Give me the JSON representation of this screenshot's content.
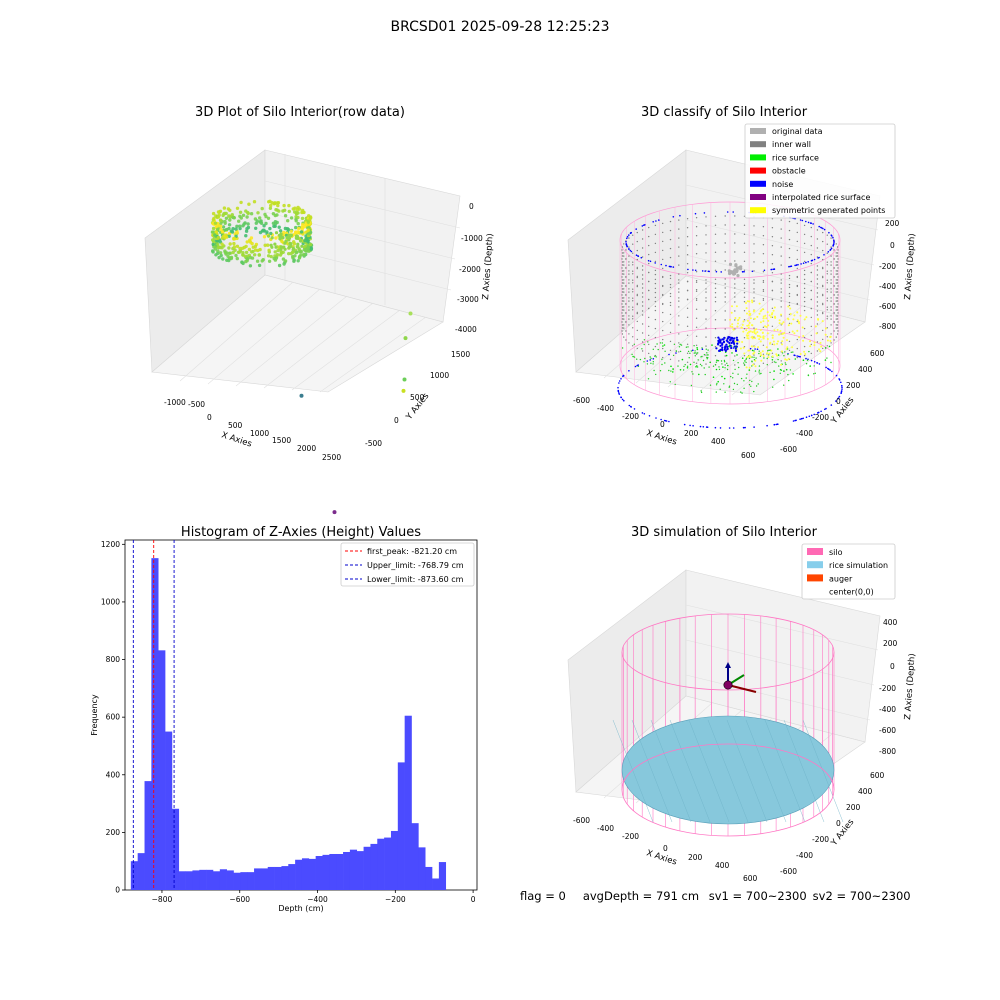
{
  "suptitle": "BRCSD01 2025-09-28 12:25:23",
  "chart_data": [
    {
      "type": "scatter",
      "title": "3D Plot of Silo Interior(row data)",
      "xlabel": "X Axies",
      "ylabel": "Y Axies",
      "zlabel": "Z Axies (Depth)",
      "x_ticks": [
        "-1000",
        "-500",
        "0",
        "500",
        "1000",
        "1500",
        "2000",
        "2500"
      ],
      "y_ticks": [
        "-500",
        "0",
        "500",
        "1000",
        "1500"
      ],
      "z_ticks": [
        "0",
        "-1000",
        "-2000",
        "-3000",
        "-4000"
      ],
      "colormap": "viridis",
      "outliers": [
        {
          "x": 1500,
          "y": 1200,
          "z": -300,
          "color": "#a8e05a"
        },
        {
          "x": 1700,
          "y": 1000,
          "z": -700,
          "color": "#8fd64b"
        },
        {
          "x": 2300,
          "y": 600,
          "z": -1500,
          "color": "#c9e020"
        },
        {
          "x": 2000,
          "y": 800,
          "z": -1600,
          "color": "#6cce59"
        },
        {
          "x": 400,
          "y": 200,
          "z": -2200,
          "color": "#3b7d8f"
        },
        {
          "x": 2200,
          "y": -400,
          "z": -4100,
          "color": "#7b2b8c"
        }
      ]
    },
    {
      "type": "scatter",
      "title": "3D classify of Silo Interior",
      "xlabel": "X Axies",
      "ylabel": "Y Axies",
      "zlabel": "Z Axies (Depth)",
      "x_ticks": [
        "-600",
        "-400",
        "-200",
        "0",
        "200",
        "400",
        "600"
      ],
      "y_ticks": [
        "-600",
        "-400",
        "-200",
        "0",
        "200",
        "400",
        "600"
      ],
      "z_ticks": [
        "200",
        "0",
        "-200",
        "-400",
        "-600",
        "-800"
      ],
      "legend": [
        {
          "label": "original data",
          "color": "#b0b0b0"
        },
        {
          "label": "inner wall",
          "color": "#808080"
        },
        {
          "label": "rice surface",
          "color": "#00ee00"
        },
        {
          "label": "obstacle",
          "color": "#ff0000"
        },
        {
          "label": "noise",
          "color": "#0000ff"
        },
        {
          "label": "interpolated rice surface",
          "color": "#800080"
        },
        {
          "label": "symmetric generated points",
          "color": "#ffff00"
        }
      ],
      "legend_loc": "upper right"
    },
    {
      "type": "bar",
      "title": "Histogram of Z-Axies (Height) Values",
      "xlabel": "Depth (cm)",
      "ylabel": "Frequency",
      "xlim": [
        -895,
        10
      ],
      "ylim": [
        0,
        1215
      ],
      "x_ticks": [
        -800,
        -600,
        -400,
        -200,
        0
      ],
      "y_ticks": [
        0,
        200,
        400,
        600,
        800,
        1000,
        1200
      ],
      "bar_color": "#4b4bff",
      "bin_start": -880,
      "bin_width": 17.6,
      "values": [
        100,
        128,
        378,
        1152,
        832,
        550,
        282,
        65,
        65,
        68,
        70,
        70,
        65,
        72,
        68,
        60,
        62,
        62,
        75,
        75,
        80,
        80,
        83,
        90,
        105,
        110,
        108,
        118,
        122,
        125,
        125,
        132,
        140,
        135,
        150,
        160,
        178,
        182,
        205,
        443,
        605,
        232,
        148,
        80,
        40,
        97
      ],
      "lines": [
        {
          "x": -821.2,
          "color": "#ff0000",
          "label": "first_peak: -821.20 cm"
        },
        {
          "x": -768.79,
          "color": "#0000cc",
          "label": "Upper_limit: -768.79 cm"
        },
        {
          "x": -873.6,
          "color": "#0000cc",
          "label": "Lower_limit: -873.60 cm"
        }
      ],
      "legend_loc": "upper right"
    },
    {
      "type": "scatter",
      "title": "3D simulation of Silo Interior",
      "xlabel": "X Axies",
      "ylabel": "Y Axies",
      "zlabel": "Z Axies (Depth)",
      "x_ticks": [
        "-600",
        "-400",
        "-200",
        "0",
        "200",
        "400",
        "600"
      ],
      "y_ticks": [
        "-600",
        "-400",
        "-200",
        "0",
        "200",
        "400",
        "600"
      ],
      "z_ticks": [
        "400",
        "200",
        "0",
        "-200",
        "-400",
        "-600",
        "-800"
      ],
      "legend": [
        {
          "label": "silo",
          "color": "#ff69b4"
        },
        {
          "label": "rice simulation",
          "color": "#87ceeb"
        },
        {
          "label": "auger",
          "color": "#ff4500"
        },
        {
          "label": "center(0,0)",
          "color": "#ffffff"
        }
      ],
      "legend_loc": "upper right"
    }
  ],
  "footer": {
    "flag": "flag = 0",
    "avg_depth": "avgDepth = 791 cm",
    "sv1": "sv1 = 700~2300",
    "sv2": "sv2 = 700~2300"
  }
}
